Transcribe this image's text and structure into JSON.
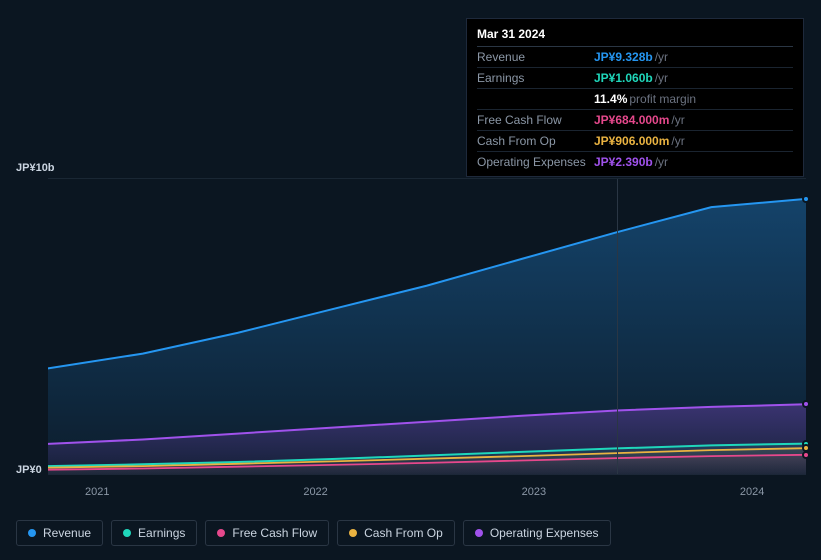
{
  "tooltip": {
    "date": "Mar 31 2024",
    "rows": [
      {
        "label": "Revenue",
        "value": "JP¥9.328b",
        "unit": "/yr",
        "color": "#2596f1"
      },
      {
        "label": "Earnings",
        "value": "JP¥1.060b",
        "unit": "/yr",
        "color": "#1fd7bb"
      },
      {
        "label": "",
        "value": "11.4%",
        "unit": "profit margin",
        "color": "#ffffff"
      },
      {
        "label": "Free Cash Flow",
        "value": "JP¥684.000m",
        "unit": "/yr",
        "color": "#e6488c"
      },
      {
        "label": "Cash From Op",
        "value": "JP¥906.000m",
        "unit": "/yr",
        "color": "#eab341"
      },
      {
        "label": "Operating Expenses",
        "value": "JP¥2.390b",
        "unit": "/yr",
        "color": "#a052ec"
      }
    ]
  },
  "chart": {
    "type": "area",
    "background_color": "#0b1621",
    "grid_color": "#1a2734",
    "y_axis": {
      "ticks": [
        {
          "label": "JP¥10b",
          "value": 10
        },
        {
          "label": "JP¥0",
          "value": 0
        }
      ],
      "min": 0,
      "max": 10,
      "label_color": "#cbd5e1",
      "label_fontsize": 11
    },
    "x_axis": {
      "labels": [
        "2021",
        "2022",
        "2023",
        "2024"
      ],
      "positions": [
        0.065,
        0.353,
        0.641,
        0.929
      ],
      "label_color": "#8b97a6",
      "label_fontsize": 11
    },
    "cursor_x": 0.75,
    "series": [
      {
        "name": "Revenue",
        "color": "#2596f1",
        "fill_opacity_top": 0.35,
        "fill_opacity_bottom": 0.05,
        "line_width": 2,
        "points": [
          3.6,
          4.1,
          4.8,
          5.6,
          6.4,
          7.3,
          8.2,
          9.05,
          9.328
        ]
      },
      {
        "name": "Operating Expenses",
        "color": "#a052ec",
        "fill_opacity_top": 0.3,
        "fill_opacity_bottom": 0.05,
        "line_width": 2,
        "points": [
          1.05,
          1.2,
          1.4,
          1.6,
          1.8,
          2.0,
          2.18,
          2.3,
          2.39
        ]
      },
      {
        "name": "Earnings",
        "color": "#1fd7bb",
        "fill_opacity_top": 0.12,
        "fill_opacity_bottom": 0.02,
        "line_width": 2,
        "points": [
          0.3,
          0.36,
          0.44,
          0.54,
          0.66,
          0.78,
          0.9,
          1.0,
          1.06
        ]
      },
      {
        "name": "Cash From Op",
        "color": "#eab341",
        "fill_opacity_top": 0.1,
        "fill_opacity_bottom": 0.02,
        "line_width": 1.8,
        "points": [
          0.25,
          0.3,
          0.38,
          0.46,
          0.55,
          0.64,
          0.74,
          0.84,
          0.906
        ]
      },
      {
        "name": "Free Cash Flow",
        "color": "#e6488c",
        "fill_opacity_top": 0.1,
        "fill_opacity_bottom": 0.02,
        "line_width": 1.8,
        "points": [
          0.18,
          0.22,
          0.28,
          0.34,
          0.41,
          0.49,
          0.57,
          0.64,
          0.684
        ]
      }
    ]
  },
  "legend": [
    {
      "label": "Revenue",
      "color": "#2596f1"
    },
    {
      "label": "Earnings",
      "color": "#1fd7bb"
    },
    {
      "label": "Free Cash Flow",
      "color": "#e6488c"
    },
    {
      "label": "Cash From Op",
      "color": "#eab341"
    },
    {
      "label": "Operating Expenses",
      "color": "#a052ec"
    }
  ]
}
